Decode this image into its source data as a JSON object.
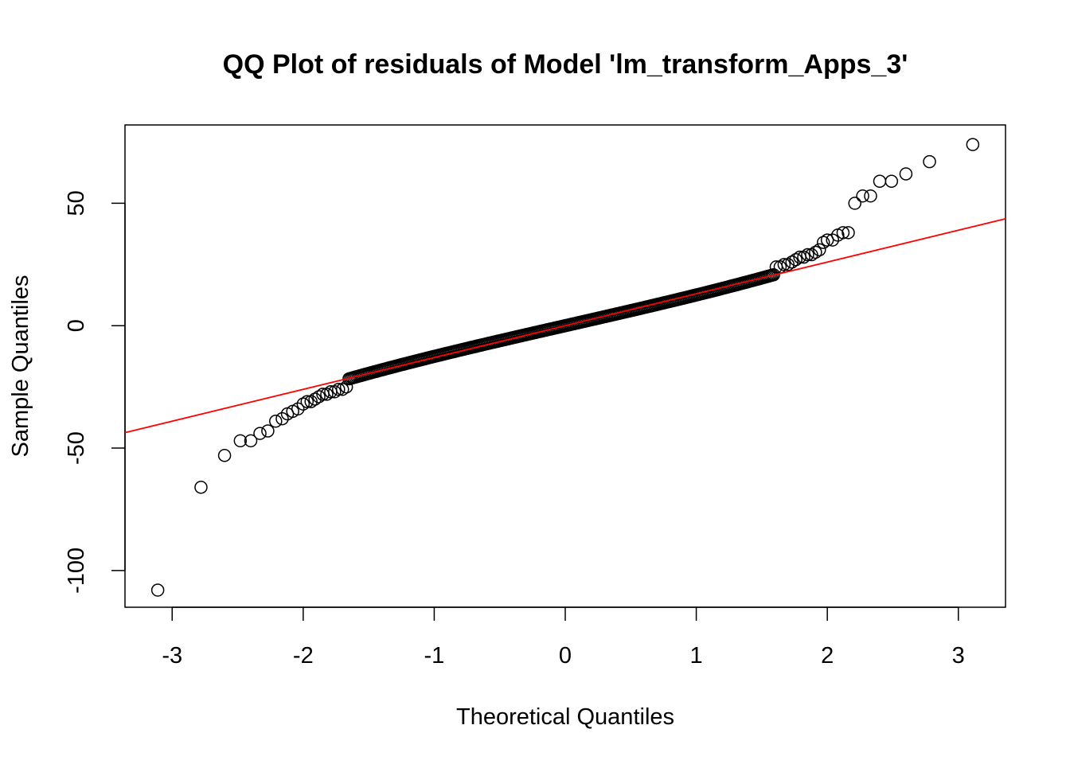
{
  "chart_data": {
    "type": "scatter",
    "title": "QQ Plot of residuals of Model 'lm_transform_Apps_3'",
    "xlabel": "Theoretical Quantiles",
    "ylabel": "Sample Quantiles",
    "xlim": [
      -3.36,
      3.36
    ],
    "ylim": [
      -115,
      82
    ],
    "x_ticks": [
      -3,
      -2,
      -1,
      0,
      1,
      2,
      3
    ],
    "x_tick_labels": [
      "-3",
      "-2",
      "-1",
      "0",
      "1",
      "2",
      "3"
    ],
    "y_ticks": [
      -100,
      -50,
      0,
      50
    ],
    "y_tick_labels": [
      "-100",
      "-50",
      "0",
      "50"
    ],
    "grid": false,
    "reference_line": {
      "color": "#ff0000",
      "intercept": 0,
      "slope": 13
    },
    "series": [
      {
        "marker": "open-circle",
        "color": "#000000",
        "points": [
          [
            -3.11,
            -108
          ],
          [
            -2.78,
            -66
          ],
          [
            -2.6,
            -53
          ],
          [
            -2.48,
            -47
          ],
          [
            -2.4,
            -47
          ],
          [
            -2.33,
            -44
          ],
          [
            -2.27,
            -43
          ],
          [
            -2.21,
            -39
          ],
          [
            -2.16,
            -38
          ],
          [
            -2.12,
            -36
          ],
          [
            -2.08,
            -35
          ],
          [
            -2.04,
            -34
          ],
          [
            -2.0,
            -32
          ],
          [
            -1.97,
            -31
          ],
          [
            -1.94,
            -31
          ],
          [
            -1.91,
            -30
          ],
          [
            -1.88,
            -29
          ],
          [
            -1.85,
            -28
          ],
          [
            -1.82,
            -28
          ],
          [
            -1.79,
            -27
          ],
          [
            -1.76,
            -27
          ],
          [
            -1.73,
            -26
          ],
          [
            -1.7,
            -26
          ],
          [
            -1.67,
            -25
          ],
          [
            3.11,
            74
          ],
          [
            2.78,
            67
          ],
          [
            2.6,
            62
          ],
          [
            2.49,
            59
          ],
          [
            2.4,
            59
          ],
          [
            2.33,
            53
          ],
          [
            2.27,
            53
          ],
          [
            2.21,
            50
          ],
          [
            2.16,
            38
          ],
          [
            2.12,
            38
          ],
          [
            2.08,
            37
          ],
          [
            2.04,
            35
          ],
          [
            2.0,
            35
          ],
          [
            1.97,
            34
          ],
          [
            1.94,
            31
          ],
          [
            1.91,
            30
          ],
          [
            1.88,
            29
          ],
          [
            1.85,
            29
          ],
          [
            1.82,
            28
          ],
          [
            1.79,
            28
          ],
          [
            1.76,
            27
          ],
          [
            1.73,
            26
          ],
          [
            1.7,
            25
          ],
          [
            1.67,
            25
          ],
          [
            1.64,
            24
          ],
          [
            1.61,
            24
          ]
        ]
      }
    ]
  }
}
